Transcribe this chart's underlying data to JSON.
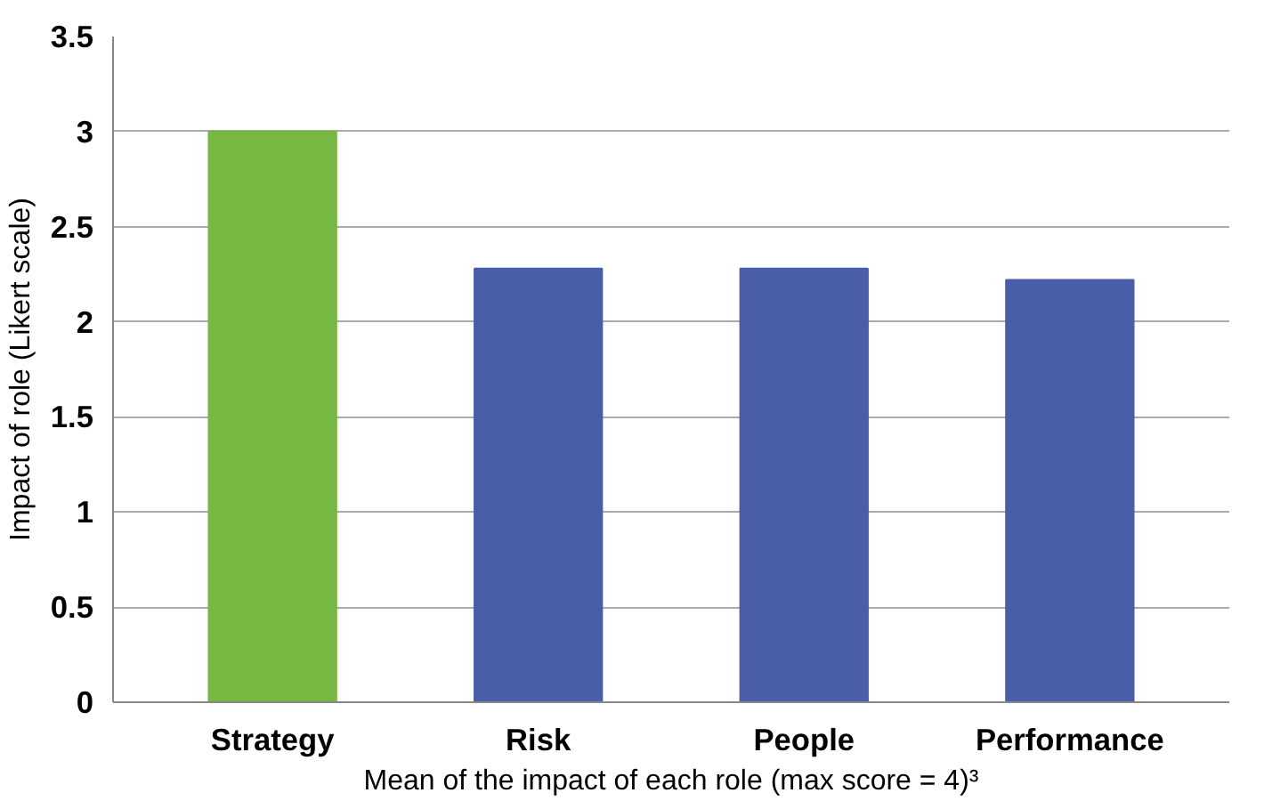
{
  "chart_data": {
    "type": "bar",
    "xlabel": "Mean of the impact of each role (max score = 4)³",
    "ylabel": "Impact of role (Likert scale)",
    "categories": [
      "Strategy",
      "Risk",
      "People",
      "Performance"
    ],
    "values": [
      3.0,
      2.28,
      2.28,
      2.22
    ],
    "colors": [
      "#77b843",
      "#4a5ea8",
      "#4a5ea8",
      "#4a5ea8"
    ],
    "ylim": [
      0,
      3.5
    ],
    "yticks": [
      0,
      0.5,
      1,
      1.5,
      2,
      2.5,
      3,
      3.5
    ],
    "grid": "y"
  }
}
